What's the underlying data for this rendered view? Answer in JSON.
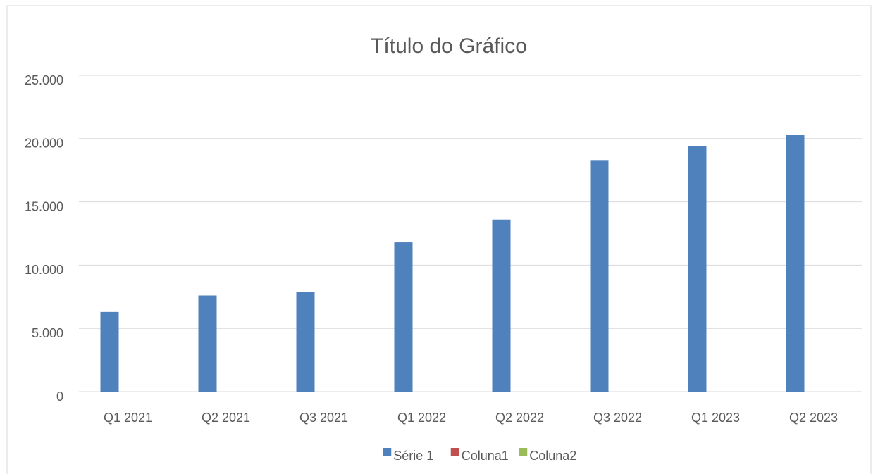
{
  "chart_data": {
    "type": "bar",
    "title": "Título do Gráfico",
    "categories": [
      "Q1 2021",
      "Q2 2021",
      "Q3 2021",
      "Q1 2022",
      "Q2 2022",
      "Q3 2022",
      "Q1 2023",
      "Q2 2023"
    ],
    "series": [
      {
        "name": "Série 1",
        "color": "#4f81bd",
        "values": [
          6300,
          7600,
          7850,
          11800,
          13600,
          18300,
          19400,
          20300
        ]
      },
      {
        "name": "Coluna1",
        "color": "#c0504d",
        "values": [
          null,
          null,
          null,
          null,
          null,
          null,
          null,
          null
        ]
      },
      {
        "name": "Coluna2",
        "color": "#9bbb59",
        "values": [
          null,
          null,
          null,
          null,
          null,
          null,
          null,
          null
        ]
      }
    ],
    "ylim": [
      0,
      25000
    ],
    "yticks": [
      0,
      {
        "value": 5000,
        "label": "5.000"
      },
      {
        "value": 10000,
        "label": "10.000"
      },
      {
        "value": 15000,
        "label": "15.000"
      },
      {
        "value": 20000,
        "label": "20.000"
      },
      {
        "value": 25000,
        "label": "25.000"
      }
    ],
    "grid": true,
    "legend": "bottom"
  }
}
